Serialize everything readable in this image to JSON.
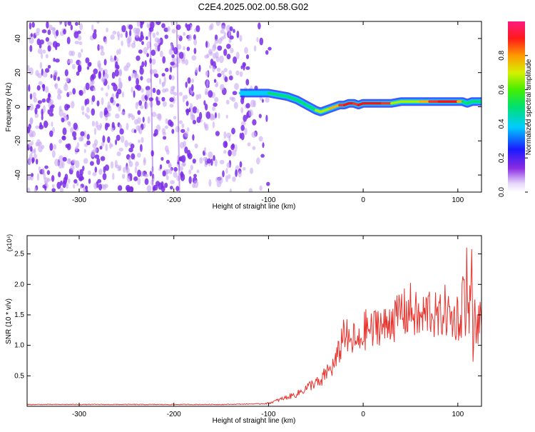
{
  "title": "C2E4.2025.002.00.58.G02",
  "colors": {
    "snr_line": "#e8332d",
    "ridge_low": "#1f3cff",
    "ridge_high": "#e81e1e",
    "noise": "#7a2be8",
    "noise_light": "#c8a8f2"
  },
  "chart_data": [
    {
      "type": "heatmap",
      "xlabel": "Height of straight line (km)",
      "ylabel": "Frequency (Hz)",
      "xlim": [
        -355,
        125
      ],
      "ylim": [
        -50,
        50
      ],
      "x_ticks": [
        -300,
        -200,
        -100,
        0,
        100
      ],
      "y_ticks": [
        40,
        20,
        0,
        -20,
        -40
      ],
      "ridge": {
        "x": [
          -130,
          -120,
          -110,
          -100,
          -90,
          -80,
          -70,
          -60,
          -50,
          -45,
          -40,
          -35,
          -30,
          -25,
          -20,
          -15,
          -10,
          -5,
          0,
          10,
          20,
          30,
          40,
          50,
          60,
          70,
          80,
          90,
          100,
          105,
          110,
          115,
          120,
          125
        ],
        "frequency_hz": [
          8,
          8,
          8,
          8,
          7,
          6,
          4,
          1,
          -2,
          -3,
          -2,
          -1,
          0,
          1,
          1,
          2,
          2,
          1,
          2,
          2,
          2,
          2,
          3,
          3,
          3,
          3,
          3,
          3,
          3,
          3,
          2,
          3,
          3,
          3
        ],
        "amplitude": [
          0.35,
          0.35,
          0.4,
          0.45,
          0.5,
          0.5,
          0.5,
          0.55,
          0.55,
          0.6,
          0.6,
          0.65,
          0.7,
          0.75,
          0.85,
          0.9,
          0.85,
          0.8,
          0.95,
          0.95,
          0.9,
          0.7,
          0.6,
          0.6,
          0.65,
          0.8,
          0.85,
          0.9,
          0.8,
          0.6,
          0.45,
          0.55,
          0.5,
          0.5
        ]
      },
      "colorbar": {
        "label": "Normalized spectral amplitude",
        "range": [
          0,
          1
        ],
        "ticks": [
          "0.0",
          "0.2",
          "0.4",
          "0.6",
          "0.8"
        ]
      }
    },
    {
      "type": "line",
      "xlabel": "Height of straight line (km)",
      "ylabel": "SNR (10 * v/v)",
      "y_multiplier": "(x10⁴)",
      "xlim": [
        -355,
        125
      ],
      "ylim": [
        0,
        2.8
      ],
      "x_ticks": [
        -300,
        -200,
        -100,
        0,
        100
      ],
      "y_ticks": [
        "2.5",
        "2.0",
        "1.5",
        "1.0",
        "0.5"
      ],
      "series": [
        {
          "x": [
            -355,
            -300,
            -250,
            -200,
            -150,
            -110,
            -100,
            -90,
            -80,
            -70,
            -60,
            -55,
            -50,
            -45,
            -40,
            -35,
            -30,
            -25,
            -20,
            -15,
            -10,
            -5,
            0,
            5,
            10,
            15,
            20,
            25,
            30,
            35,
            40,
            45,
            50,
            55,
            60,
            65,
            70,
            75,
            80,
            85,
            90,
            95,
            100,
            103,
            106,
            108,
            110,
            112,
            114,
            116,
            118,
            120,
            122,
            125
          ],
          "y": [
            0.03,
            0.03,
            0.03,
            0.03,
            0.03,
            0.04,
            0.05,
            0.1,
            0.15,
            0.2,
            0.3,
            0.35,
            0.4,
            0.35,
            0.55,
            0.6,
            0.7,
            0.9,
            1.3,
            1.0,
            1.1,
            1.0,
            1.2,
            1.3,
            1.2,
            1.4,
            1.3,
            1.3,
            1.5,
            1.4,
            1.6,
            1.5,
            1.6,
            1.5,
            1.4,
            1.5,
            1.6,
            1.5,
            1.4,
            1.6,
            1.5,
            1.4,
            1.5,
            1.3,
            2.2,
            1.1,
            2.6,
            1.0,
            2.8,
            0.8,
            1.5,
            1.2,
            1.4,
            1.3
          ]
        }
      ]
    }
  ]
}
